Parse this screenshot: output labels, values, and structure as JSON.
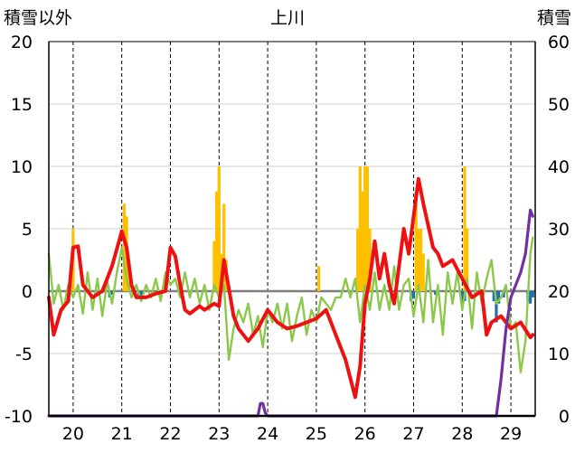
{
  "chart_data": {
    "type": "line",
    "title": "上川",
    "ylabel_left": "積雪以外",
    "ylabel_right": "積雪",
    "ylim_left": [
      -10,
      20
    ],
    "ylim_right": [
      0,
      60
    ],
    "left_ticks": [
      "20",
      "15",
      "10",
      "5",
      "0",
      "-5",
      "-10"
    ],
    "right_ticks": [
      "60",
      "50",
      "40",
      "30",
      "20",
      "10",
      "0"
    ],
    "x_range": [
      19.5,
      29.5
    ],
    "x_categories": [
      "20",
      "21",
      "22",
      "23",
      "24",
      "25",
      "26",
      "27",
      "28",
      "29"
    ],
    "grid": true,
    "colors": {
      "red": "#ee1111",
      "green": "#8cc84b",
      "purple": "#7030a0",
      "orange": "#ffc000",
      "blue": "#1f6fb5"
    },
    "series": [
      {
        "axis": "left",
        "style": "line",
        "color": "red",
        "x": [
          19.5,
          19.6,
          19.75,
          19.9,
          20.0,
          20.1,
          20.2,
          20.4,
          20.6,
          20.8,
          21.0,
          21.1,
          21.2,
          21.3,
          21.5,
          21.7,
          21.9,
          22.0,
          22.1,
          22.2,
          22.3,
          22.4,
          22.6,
          22.7,
          22.9,
          23.0,
          23.1,
          23.3,
          23.4,
          23.6,
          23.8,
          24.0,
          24.2,
          24.4,
          24.6,
          24.8,
          25.0,
          25.2,
          25.4,
          25.6,
          25.8,
          25.9,
          26.0,
          26.1,
          26.2,
          26.3,
          26.4,
          26.5,
          26.6,
          26.8,
          26.9,
          27.0,
          27.1,
          27.2,
          27.4,
          27.5,
          27.6,
          27.8,
          28.0,
          28.2,
          28.4,
          28.5,
          28.6,
          28.8,
          29.0,
          29.2,
          29.4,
          29.45
        ],
        "y": [
          -0.5,
          -3.5,
          -1.5,
          -0.8,
          3.5,
          3.6,
          0.5,
          -0.5,
          0.0,
          2.0,
          4.8,
          3.5,
          0.5,
          -0.5,
          -0.5,
          -0.2,
          0.0,
          3.5,
          2.8,
          0.5,
          -1.5,
          -1.8,
          -1.2,
          -1.5,
          -1.0,
          -1.2,
          2.5,
          -2.0,
          -3.0,
          -4.0,
          -3.0,
          -1.5,
          -2.5,
          -3.0,
          -2.8,
          -2.5,
          -2.2,
          -1.5,
          -3.5,
          -5.5,
          -8.5,
          -6.0,
          -1.0,
          1.0,
          4.0,
          1.0,
          3.0,
          0.5,
          -1.0,
          5.0,
          3.0,
          6.0,
          9.0,
          7.0,
          3.5,
          3.0,
          2.0,
          2.5,
          1.0,
          -0.5,
          0.0,
          -3.5,
          -2.5,
          -2.0,
          -3.0,
          -2.5,
          -3.7,
          -3.5
        ]
      },
      {
        "axis": "left",
        "style": "line",
        "color": "green",
        "x": [
          19.5,
          19.6,
          19.7,
          19.8,
          19.9,
          20.0,
          20.1,
          20.2,
          20.3,
          20.4,
          20.5,
          20.6,
          20.7,
          20.8,
          20.9,
          21.0,
          21.1,
          21.2,
          21.3,
          21.4,
          21.5,
          21.6,
          21.7,
          21.8,
          21.9,
          22.0,
          22.1,
          22.2,
          22.3,
          22.4,
          22.5,
          22.6,
          22.7,
          22.8,
          22.9,
          23.0,
          23.1,
          23.2,
          23.3,
          23.4,
          23.5,
          23.6,
          23.7,
          23.8,
          23.9,
          24.0,
          24.1,
          24.2,
          24.3,
          24.4,
          24.5,
          24.6,
          24.7,
          24.8,
          24.9,
          25.0,
          25.1,
          25.2,
          25.3,
          25.4,
          25.5,
          25.6,
          25.7,
          25.8,
          25.9,
          26.0,
          26.1,
          26.2,
          26.3,
          26.4,
          26.5,
          26.6,
          26.7,
          26.8,
          26.9,
          27.0,
          27.1,
          27.2,
          27.3,
          27.4,
          27.5,
          27.6,
          27.7,
          27.8,
          27.9,
          28.0,
          28.1,
          28.2,
          28.3,
          28.4,
          28.5,
          28.6,
          28.7,
          28.8,
          28.9,
          29.0,
          29.1,
          29.2,
          29.3,
          29.4,
          29.45
        ],
        "y": [
          3.0,
          -1.0,
          0.5,
          -1.5,
          0.5,
          -0.5,
          0.5,
          -1.8,
          1.5,
          -1.5,
          1.0,
          -2.0,
          0.8,
          -1.0,
          1.5,
          3.5,
          1.0,
          -0.5,
          0.5,
          -0.8,
          0.5,
          -0.5,
          1.0,
          -0.8,
          1.5,
          0.5,
          1.0,
          -0.5,
          1.5,
          -0.5,
          1.0,
          -1.0,
          0.5,
          -1.5,
          0.5,
          -0.5,
          0.5,
          -5.5,
          -3.0,
          -1.5,
          -2.5,
          -1.0,
          -3.5,
          -2.0,
          -4.5,
          -1.5,
          -2.5,
          -1.0,
          -3.0,
          -1.0,
          -4.0,
          -2.0,
          -0.5,
          -3.5,
          -1.5,
          -2.5,
          -0.5,
          -1.0,
          -1.5,
          -0.5,
          -0.5,
          1.0,
          -0.5,
          1.0,
          -2.5,
          0.5,
          -1.5,
          1.5,
          -1.5,
          0.5,
          -1.5,
          2.0,
          -1.5,
          0.5,
          1.0,
          -2.0,
          0.5,
          -2.5,
          2.5,
          -2.5,
          0.5,
          -3.5,
          1.5,
          -1.0,
          1.5,
          -1.5,
          1.0,
          -3.0,
          1.5,
          -1.0,
          1.0,
          2.5,
          -1.0,
          -0.5,
          0.5,
          -3.0,
          -2.5,
          -6.5,
          -4.0,
          3.0,
          4.3
        ]
      },
      {
        "axis": "right",
        "style": "line",
        "color": "purple",
        "x": [
          19.5,
          20.0,
          21.0,
          22.0,
          23.0,
          23.7,
          23.8,
          23.85,
          23.9,
          23.95,
          24.0,
          25.0,
          26.0,
          27.0,
          28.0,
          28.7,
          28.8,
          28.9,
          29.0,
          29.1,
          29.2,
          29.3,
          29.4,
          29.45
        ],
        "y": [
          0,
          0,
          0,
          0,
          0,
          0,
          0,
          2.0,
          2.0,
          0.5,
          0,
          0,
          0,
          0,
          0,
          0,
          6,
          14,
          19,
          21,
          23,
          26,
          33,
          32
        ]
      },
      {
        "axis": "left",
        "style": "bar",
        "color": "orange",
        "x": [
          20.0,
          21.05,
          21.1,
          21.15,
          22.9,
          22.95,
          23.0,
          23.05,
          23.1,
          23.15,
          25.05,
          25.85,
          25.9,
          25.95,
          26.0,
          26.05,
          26.1,
          27.05,
          27.1,
          27.15,
          27.2,
          28.05,
          28.1
        ],
        "y": [
          5,
          7,
          6,
          2.5,
          4,
          8,
          10,
          3,
          7,
          2.5,
          2,
          5,
          10,
          8,
          10,
          10,
          5,
          8,
          5,
          5,
          3,
          10,
          5
        ]
      },
      {
        "axis": "left",
        "style": "bar",
        "color": "blue",
        "x": [
          20.75,
          20.8,
          21.35,
          21.4,
          26.95,
          27.0,
          27.45,
          28.0,
          28.05,
          28.65,
          28.7,
          28.75,
          28.85,
          29.35,
          29.4,
          29.45
        ],
        "y": [
          -0.5,
          -0.3,
          -0.5,
          -0.4,
          -0.8,
          -0.6,
          -0.3,
          -1.0,
          -0.8,
          -0.8,
          -2.5,
          -1.0,
          -0.5,
          -0.8,
          -1.0,
          -0.5
        ]
      }
    ]
  }
}
